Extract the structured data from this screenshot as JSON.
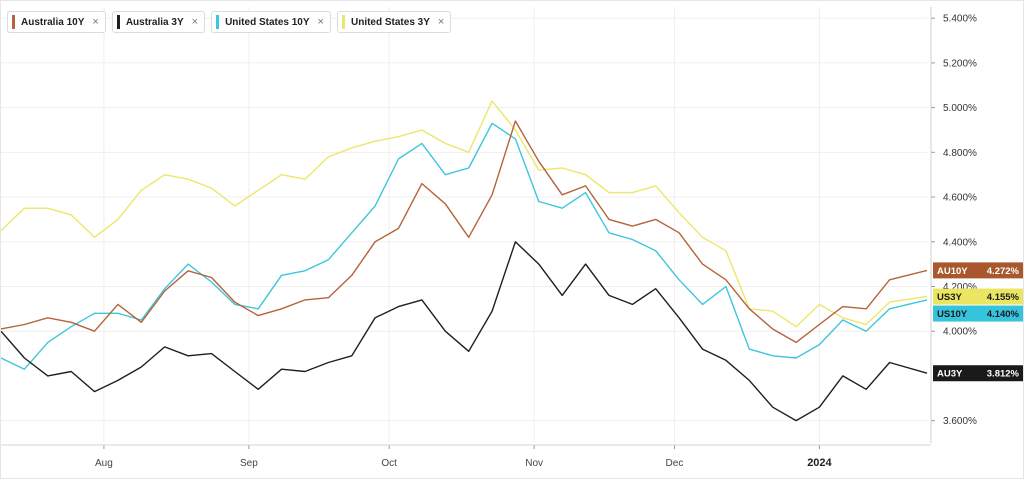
{
  "legend": [
    {
      "label": "Australia 10Y",
      "color": "#b5633a",
      "close": "×"
    },
    {
      "label": "Australia 3Y",
      "color": "#1f1f1f",
      "close": "×"
    },
    {
      "label": "United States 10Y",
      "color": "#3ec6dc",
      "close": "×"
    },
    {
      "label": "United States 3Y",
      "color": "#ece76a",
      "close": "×"
    }
  ],
  "chart_data": {
    "type": "line",
    "x_axis_labels": [
      {
        "label": "Aug",
        "date": "2023-08-01",
        "bold": false
      },
      {
        "label": "Sep",
        "date": "2023-09-01",
        "bold": false
      },
      {
        "label": "Oct",
        "date": "2023-10-01",
        "bold": false
      },
      {
        "label": "Nov",
        "date": "2023-11-01",
        "bold": false
      },
      {
        "label": "Dec",
        "date": "2023-12-01",
        "bold": false
      },
      {
        "label": "2024",
        "date": "2024-01-01",
        "bold": true
      }
    ],
    "x_range": [
      "2023-07-10",
      "2024-01-24"
    ],
    "y_range": [
      3.5,
      5.45
    ],
    "y_ticks": [
      {
        "value": 3.6,
        "label": "3.600%"
      },
      {
        "value": 4.0,
        "label": "4.000%"
      },
      {
        "value": 4.2,
        "label": "4.200%"
      },
      {
        "value": 4.4,
        "label": "4.400%"
      },
      {
        "value": 4.6,
        "label": "4.600%"
      },
      {
        "value": 4.8,
        "label": "4.800%"
      },
      {
        "value": 5.0,
        "label": "5.000%"
      },
      {
        "value": 5.2,
        "label": "5.200%"
      },
      {
        "value": 5.4,
        "label": "5.400%"
      }
    ],
    "grid": true,
    "legend_position": "top-left",
    "series": [
      {
        "name": "Australia 10Y",
        "color": "#b5633a",
        "badge": {
          "code": "AU10Y",
          "value": "4.272%",
          "bg": "#a9582d",
          "text_color": "#ffffff"
        },
        "points": [
          [
            "2023-07-10",
            4.01
          ],
          [
            "2023-07-15",
            4.03
          ],
          [
            "2023-07-20",
            4.06
          ],
          [
            "2023-07-25",
            4.04
          ],
          [
            "2023-07-30",
            4.0
          ],
          [
            "2023-08-04",
            4.12
          ],
          [
            "2023-08-09",
            4.04
          ],
          [
            "2023-08-14",
            4.18
          ],
          [
            "2023-08-19",
            4.27
          ],
          [
            "2023-08-24",
            4.24
          ],
          [
            "2023-08-29",
            4.13
          ],
          [
            "2023-09-03",
            4.07
          ],
          [
            "2023-09-08",
            4.1
          ],
          [
            "2023-09-13",
            4.14
          ],
          [
            "2023-09-18",
            4.15
          ],
          [
            "2023-09-23",
            4.25
          ],
          [
            "2023-09-28",
            4.4
          ],
          [
            "2023-10-03",
            4.46
          ],
          [
            "2023-10-08",
            4.66
          ],
          [
            "2023-10-13",
            4.57
          ],
          [
            "2023-10-18",
            4.42
          ],
          [
            "2023-10-23",
            4.61
          ],
          [
            "2023-10-28",
            4.94
          ],
          [
            "2023-11-02",
            4.76
          ],
          [
            "2023-11-07",
            4.61
          ],
          [
            "2023-11-12",
            4.65
          ],
          [
            "2023-11-17",
            4.5
          ],
          [
            "2023-11-22",
            4.47
          ],
          [
            "2023-11-27",
            4.5
          ],
          [
            "2023-12-02",
            4.44
          ],
          [
            "2023-12-07",
            4.3
          ],
          [
            "2023-12-12",
            4.23
          ],
          [
            "2023-12-17",
            4.1
          ],
          [
            "2023-12-22",
            4.01
          ],
          [
            "2023-12-27",
            3.95
          ],
          [
            "2024-01-01",
            4.03
          ],
          [
            "2024-01-06",
            4.11
          ],
          [
            "2024-01-11",
            4.1
          ],
          [
            "2024-01-16",
            4.23
          ],
          [
            "2024-01-24",
            4.272
          ]
        ]
      },
      {
        "name": "Australia 3Y",
        "color": "#1f1f1f",
        "badge": {
          "code": "AU3Y",
          "value": "3.812%",
          "bg": "#1a1a1a",
          "text_color": "#ffffff"
        },
        "points": [
          [
            "2023-07-10",
            4.0
          ],
          [
            "2023-07-15",
            3.88
          ],
          [
            "2023-07-20",
            3.8
          ],
          [
            "2023-07-25",
            3.82
          ],
          [
            "2023-07-30",
            3.73
          ],
          [
            "2023-08-04",
            3.78
          ],
          [
            "2023-08-09",
            3.84
          ],
          [
            "2023-08-14",
            3.93
          ],
          [
            "2023-08-19",
            3.89
          ],
          [
            "2023-08-24",
            3.9
          ],
          [
            "2023-08-29",
            3.82
          ],
          [
            "2023-09-03",
            3.74
          ],
          [
            "2023-09-08",
            3.83
          ],
          [
            "2023-09-13",
            3.82
          ],
          [
            "2023-09-18",
            3.86
          ],
          [
            "2023-09-23",
            3.89
          ],
          [
            "2023-09-28",
            4.06
          ],
          [
            "2023-10-03",
            4.11
          ],
          [
            "2023-10-08",
            4.14
          ],
          [
            "2023-10-13",
            4.0
          ],
          [
            "2023-10-18",
            3.91
          ],
          [
            "2023-10-23",
            4.09
          ],
          [
            "2023-10-28",
            4.4
          ],
          [
            "2023-11-02",
            4.3
          ],
          [
            "2023-11-07",
            4.16
          ],
          [
            "2023-11-12",
            4.3
          ],
          [
            "2023-11-17",
            4.16
          ],
          [
            "2023-11-22",
            4.12
          ],
          [
            "2023-11-27",
            4.19
          ],
          [
            "2023-12-02",
            4.06
          ],
          [
            "2023-12-07",
            3.92
          ],
          [
            "2023-12-12",
            3.87
          ],
          [
            "2023-12-17",
            3.78
          ],
          [
            "2023-12-22",
            3.66
          ],
          [
            "2023-12-27",
            3.6
          ],
          [
            "2024-01-01",
            3.66
          ],
          [
            "2024-01-06",
            3.8
          ],
          [
            "2024-01-11",
            3.74
          ],
          [
            "2024-01-16",
            3.86
          ],
          [
            "2024-01-24",
            3.812
          ]
        ]
      },
      {
        "name": "United States 10Y",
        "color": "#3ec6dc",
        "badge": {
          "code": "US10Y",
          "value": "4.140%",
          "bg": "#35c3dd",
          "text_color": "#1a1a1a"
        },
        "points": [
          [
            "2023-07-10",
            3.88
          ],
          [
            "2023-07-15",
            3.83
          ],
          [
            "2023-07-20",
            3.95
          ],
          [
            "2023-07-25",
            4.02
          ],
          [
            "2023-07-30",
            4.08
          ],
          [
            "2023-08-04",
            4.08
          ],
          [
            "2023-08-09",
            4.05
          ],
          [
            "2023-08-14",
            4.19
          ],
          [
            "2023-08-19",
            4.3
          ],
          [
            "2023-08-24",
            4.22
          ],
          [
            "2023-08-29",
            4.12
          ],
          [
            "2023-09-03",
            4.1
          ],
          [
            "2023-09-08",
            4.25
          ],
          [
            "2023-09-13",
            4.27
          ],
          [
            "2023-09-18",
            4.32
          ],
          [
            "2023-09-23",
            4.44
          ],
          [
            "2023-09-28",
            4.56
          ],
          [
            "2023-10-03",
            4.77
          ],
          [
            "2023-10-08",
            4.84
          ],
          [
            "2023-10-13",
            4.7
          ],
          [
            "2023-10-18",
            4.73
          ],
          [
            "2023-10-23",
            4.93
          ],
          [
            "2023-10-28",
            4.86
          ],
          [
            "2023-11-02",
            4.58
          ],
          [
            "2023-11-07",
            4.55
          ],
          [
            "2023-11-12",
            4.62
          ],
          [
            "2023-11-17",
            4.44
          ],
          [
            "2023-11-22",
            4.41
          ],
          [
            "2023-11-27",
            4.36
          ],
          [
            "2023-12-02",
            4.23
          ],
          [
            "2023-12-07",
            4.12
          ],
          [
            "2023-12-12",
            4.2
          ],
          [
            "2023-12-17",
            3.92
          ],
          [
            "2023-12-22",
            3.89
          ],
          [
            "2023-12-27",
            3.88
          ],
          [
            "2024-01-01",
            3.94
          ],
          [
            "2024-01-06",
            4.05
          ],
          [
            "2024-01-11",
            4.0
          ],
          [
            "2024-01-16",
            4.1
          ],
          [
            "2024-01-24",
            4.14
          ]
        ]
      },
      {
        "name": "United States 3Y",
        "color": "#ece76a",
        "badge": {
          "code": "US3Y",
          "value": "4.155%",
          "bg": "#ebe562",
          "text_color": "#1a1a1a"
        },
        "points": [
          [
            "2023-07-10",
            4.45
          ],
          [
            "2023-07-15",
            4.55
          ],
          [
            "2023-07-20",
            4.55
          ],
          [
            "2023-07-25",
            4.52
          ],
          [
            "2023-07-30",
            4.42
          ],
          [
            "2023-08-04",
            4.5
          ],
          [
            "2023-08-09",
            4.63
          ],
          [
            "2023-08-14",
            4.7
          ],
          [
            "2023-08-19",
            4.68
          ],
          [
            "2023-08-24",
            4.64
          ],
          [
            "2023-08-29",
            4.56
          ],
          [
            "2023-09-03",
            4.63
          ],
          [
            "2023-09-08",
            4.7
          ],
          [
            "2023-09-13",
            4.68
          ],
          [
            "2023-09-18",
            4.78
          ],
          [
            "2023-09-23",
            4.82
          ],
          [
            "2023-09-28",
            4.85
          ],
          [
            "2023-10-03",
            4.87
          ],
          [
            "2023-10-08",
            4.9
          ],
          [
            "2023-10-13",
            4.84
          ],
          [
            "2023-10-18",
            4.8
          ],
          [
            "2023-10-23",
            5.03
          ],
          [
            "2023-10-28",
            4.9
          ],
          [
            "2023-11-02",
            4.72
          ],
          [
            "2023-11-07",
            4.73
          ],
          [
            "2023-11-12",
            4.7
          ],
          [
            "2023-11-17",
            4.62
          ],
          [
            "2023-11-22",
            4.62
          ],
          [
            "2023-11-27",
            4.65
          ],
          [
            "2023-12-02",
            4.53
          ],
          [
            "2023-12-07",
            4.42
          ],
          [
            "2023-12-12",
            4.36
          ],
          [
            "2023-12-17",
            4.1
          ],
          [
            "2023-12-22",
            4.09
          ],
          [
            "2023-12-27",
            4.02
          ],
          [
            "2024-01-01",
            4.12
          ],
          [
            "2024-01-06",
            4.06
          ],
          [
            "2024-01-11",
            4.03
          ],
          [
            "2024-01-16",
            4.13
          ],
          [
            "2024-01-24",
            4.155
          ]
        ]
      }
    ]
  }
}
